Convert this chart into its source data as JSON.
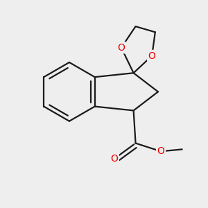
{
  "bg_color": "#eeeeee",
  "bond_color": "#1a1a1a",
  "oxygen_color": "#ee0000",
  "bond_width": 1.6,
  "figsize": [
    3.0,
    3.0
  ],
  "dpi": 100,
  "xlim": [
    -2.5,
    2.5
  ],
  "ylim": [
    -2.8,
    2.2
  ]
}
